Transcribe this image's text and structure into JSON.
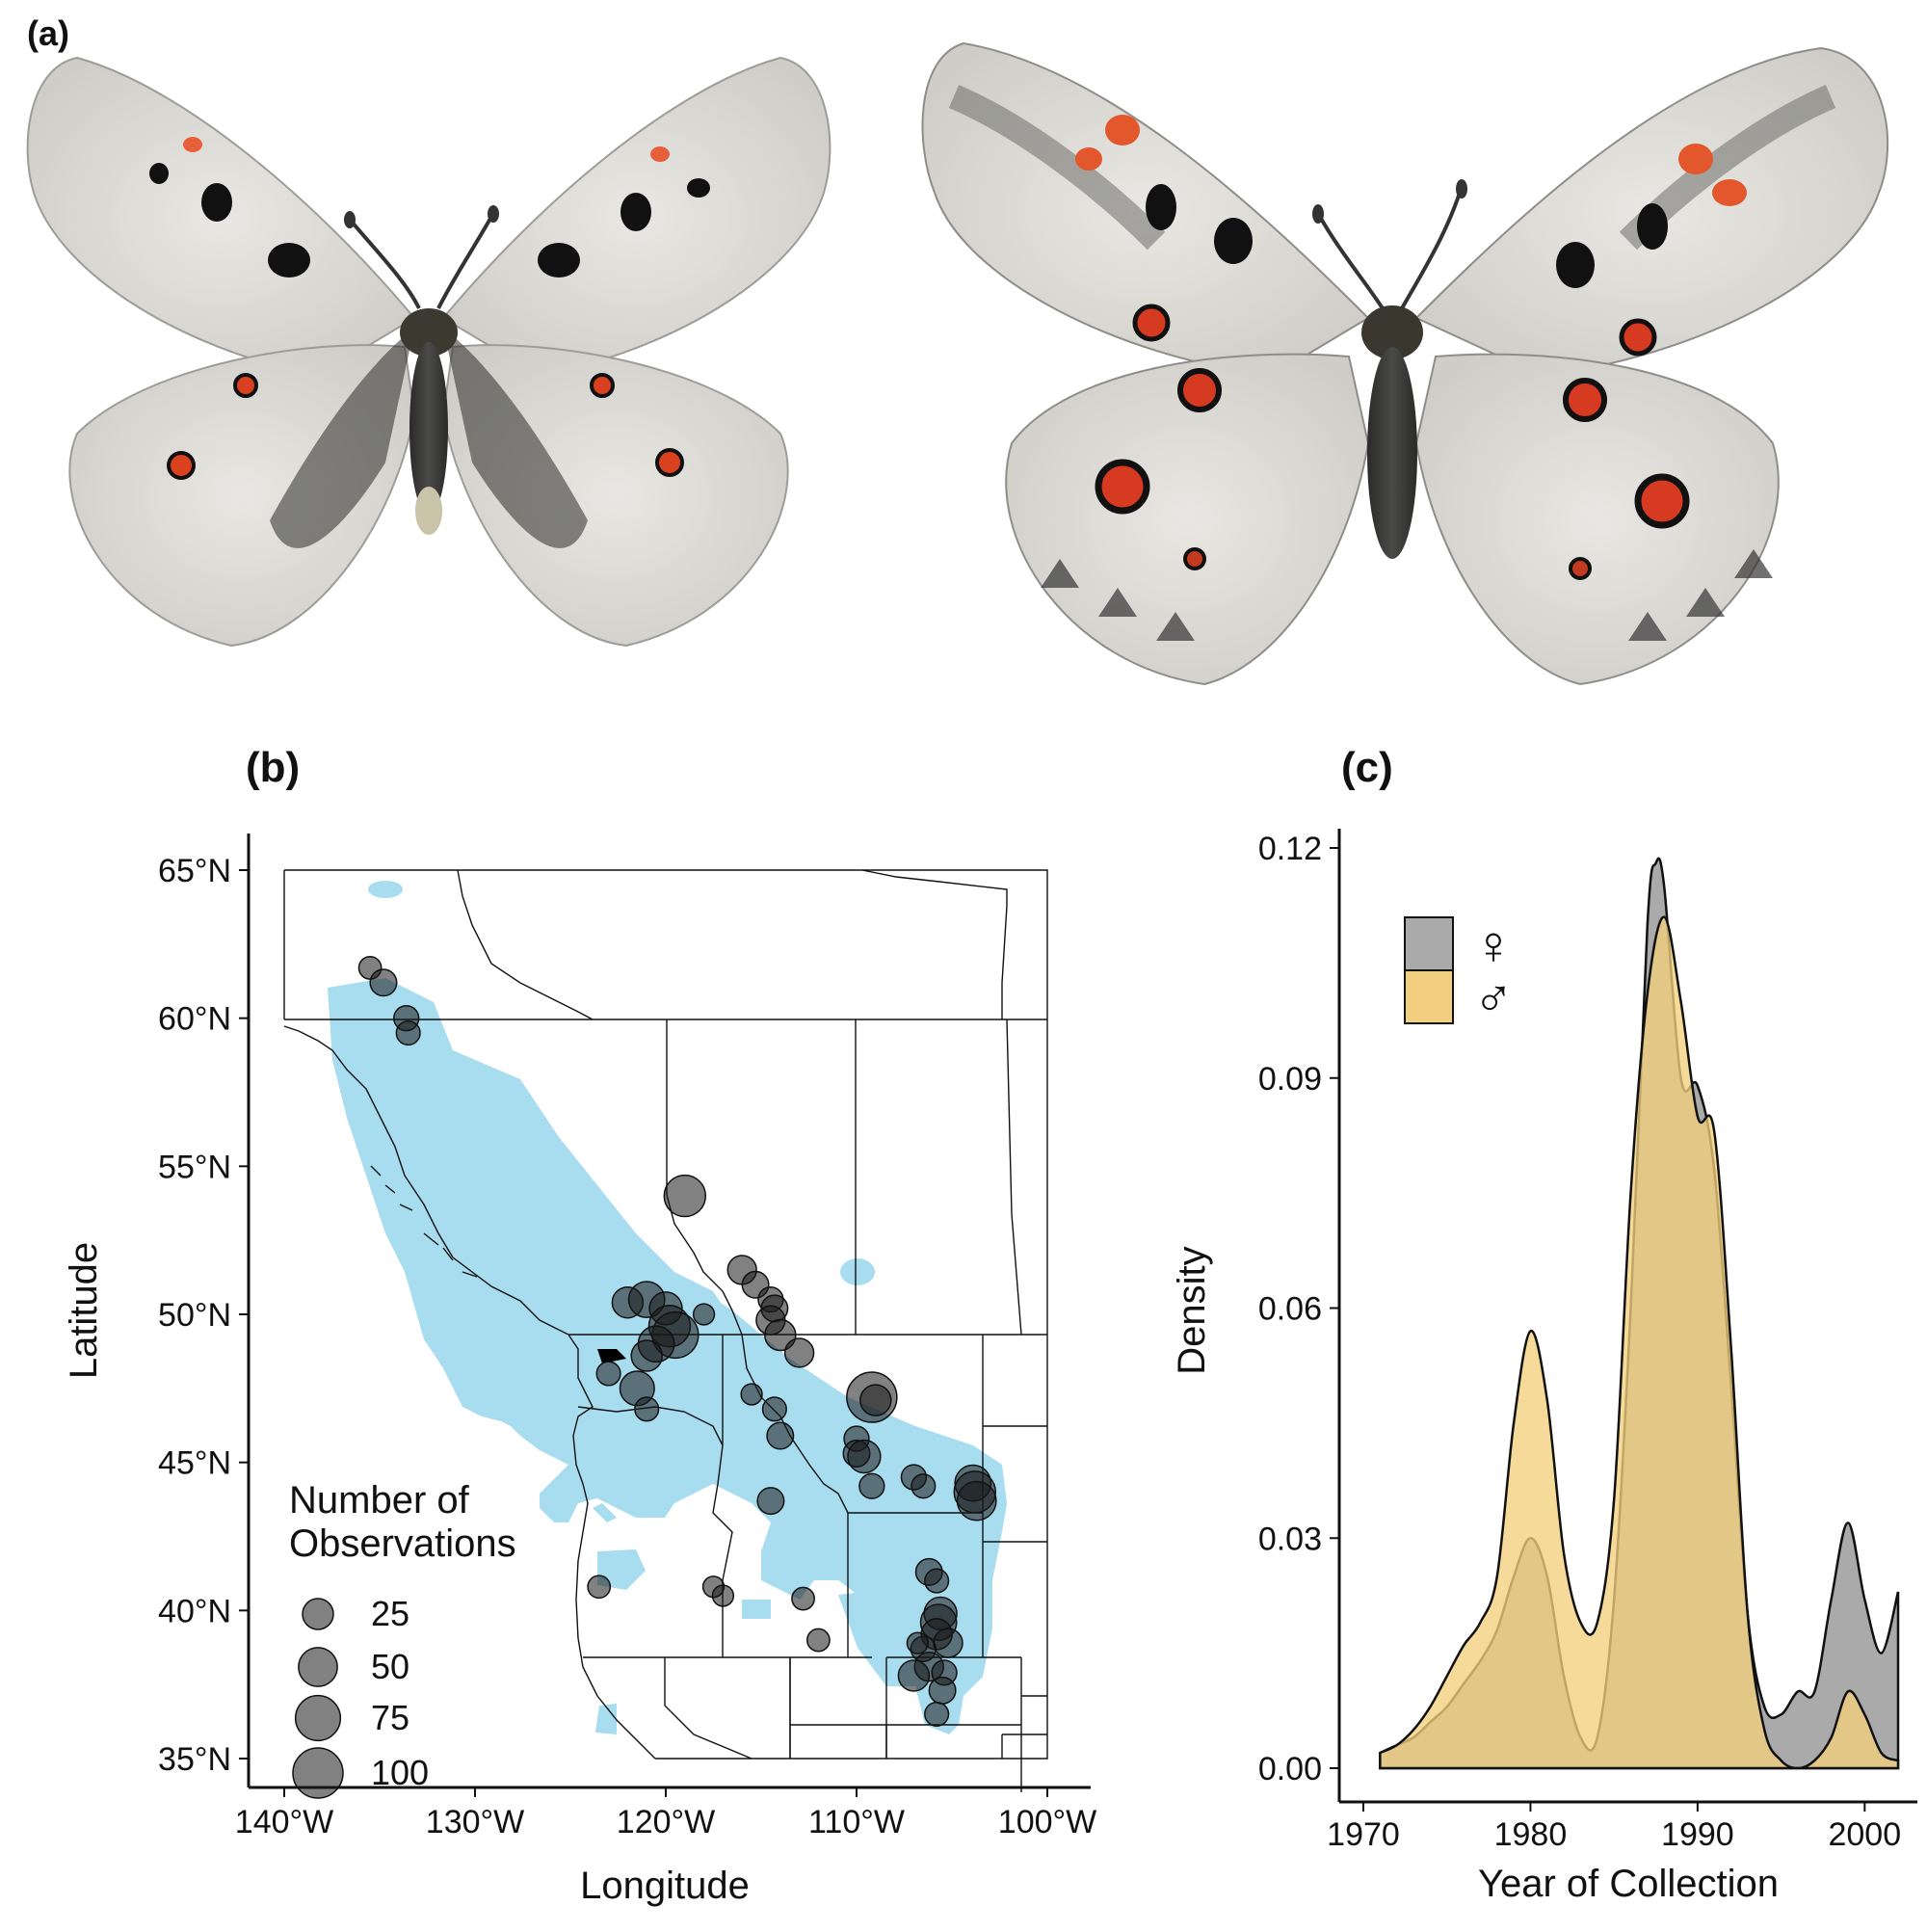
{
  "panel_a": {
    "label": "(a)"
  },
  "panel_b": {
    "label": "(b)",
    "xlabel": "Longitude",
    "ylabel": "Latitude",
    "x_ticks": [
      "140°W",
      "130°W",
      "120°W",
      "110°W",
      "100°W"
    ],
    "y_ticks": [
      "35°N",
      "40°N",
      "45°N",
      "50°N",
      "55°N",
      "60°N",
      "65°N"
    ],
    "legend_title_line1": "Number of",
    "legend_title_line2": "Observations",
    "legend_sizes": [
      "25",
      "50",
      "75",
      "100"
    ],
    "range_color": "#a8dcef",
    "point_color": "#1a1a1a",
    "legend_placement": "bottom-left",
    "observation_points": [
      {
        "lon": -135.5,
        "lat": 61.7,
        "n": 8
      },
      {
        "lon": -134.8,
        "lat": 61.2,
        "n": 15
      },
      {
        "lon": -133.6,
        "lat": 60.0,
        "n": 12
      },
      {
        "lon": -133.5,
        "lat": 59.5,
        "n": 10
      },
      {
        "lon": -119.0,
        "lat": 54.0,
        "n": 60
      },
      {
        "lon": -116.0,
        "lat": 51.5,
        "n": 20
      },
      {
        "lon": -115.3,
        "lat": 51.0,
        "n": 15
      },
      {
        "lon": -114.5,
        "lat": 50.5,
        "n": 12
      },
      {
        "lon": -114.3,
        "lat": 50.2,
        "n": 15
      },
      {
        "lon": -114.5,
        "lat": 49.8,
        "n": 20
      },
      {
        "lon": -114.0,
        "lat": 49.3,
        "n": 25
      },
      {
        "lon": -113.0,
        "lat": 48.7,
        "n": 20
      },
      {
        "lon": -122.0,
        "lat": 50.4,
        "n": 25
      },
      {
        "lon": -121.0,
        "lat": 50.5,
        "n": 40
      },
      {
        "lon": -120.0,
        "lat": 50.2,
        "n": 30
      },
      {
        "lon": -119.8,
        "lat": 49.6,
        "n": 60
      },
      {
        "lon": -119.5,
        "lat": 49.3,
        "n": 80
      },
      {
        "lon": -120.5,
        "lat": 49.0,
        "n": 40
      },
      {
        "lon": -121.0,
        "lat": 48.6,
        "n": 25
      },
      {
        "lon": -121.5,
        "lat": 47.5,
        "n": 35
      },
      {
        "lon": -121.0,
        "lat": 46.8,
        "n": 10
      },
      {
        "lon": -123.0,
        "lat": 48.0,
        "n": 10
      },
      {
        "lon": -118.0,
        "lat": 50.0,
        "n": 6
      },
      {
        "lon": -115.5,
        "lat": 47.3,
        "n": 6
      },
      {
        "lon": -114.3,
        "lat": 46.8,
        "n": 10
      },
      {
        "lon": -114.0,
        "lat": 45.9,
        "n": 15
      },
      {
        "lon": -109.2,
        "lat": 47.2,
        "n": 100
      },
      {
        "lon": -109.0,
        "lat": 47.1,
        "n": 25
      },
      {
        "lon": -110.0,
        "lat": 45.8,
        "n": 12
      },
      {
        "lon": -110.0,
        "lat": 45.3,
        "n": 15
      },
      {
        "lon": -109.6,
        "lat": 45.2,
        "n": 30
      },
      {
        "lon": -109.2,
        "lat": 44.2,
        "n": 12
      },
      {
        "lon": -107.0,
        "lat": 44.5,
        "n": 12
      },
      {
        "lon": -106.5,
        "lat": 44.2,
        "n": 10
      },
      {
        "lon": -103.9,
        "lat": 44.3,
        "n": 40
      },
      {
        "lon": -103.8,
        "lat": 44.0,
        "n": 60
      },
      {
        "lon": -103.7,
        "lat": 43.7,
        "n": 50
      },
      {
        "lon": -114.5,
        "lat": 43.7,
        "n": 15
      },
      {
        "lon": -106.2,
        "lat": 41.3,
        "n": 15
      },
      {
        "lon": -105.8,
        "lat": 41.0,
        "n": 10
      },
      {
        "lon": -105.6,
        "lat": 39.9,
        "n": 30
      },
      {
        "lon": -105.7,
        "lat": 39.6,
        "n": 40
      },
      {
        "lon": -105.8,
        "lat": 39.2,
        "n": 25
      },
      {
        "lon": -105.2,
        "lat": 38.9,
        "n": 20
      },
      {
        "lon": -106.5,
        "lat": 38.7,
        "n": 12
      },
      {
        "lon": -106.2,
        "lat": 38.1,
        "n": 20
      },
      {
        "lon": -107.0,
        "lat": 37.8,
        "n": 25
      },
      {
        "lon": -105.4,
        "lat": 37.9,
        "n": 12
      },
      {
        "lon": -105.5,
        "lat": 37.3,
        "n": 15
      },
      {
        "lon": -105.8,
        "lat": 36.5,
        "n": 10
      },
      {
        "lon": -106.8,
        "lat": 38.9,
        "n": 6
      },
      {
        "lon": -112.8,
        "lat": 40.4,
        "n": 8
      },
      {
        "lon": -112.0,
        "lat": 39.0,
        "n": 8
      },
      {
        "lon": -117.5,
        "lat": 40.8,
        "n": 6
      },
      {
        "lon": -117.0,
        "lat": 40.5,
        "n": 6
      },
      {
        "lon": -123.5,
        "lat": 40.8,
        "n": 8
      }
    ]
  },
  "panel_c": {
    "label": "(c)",
    "chart_data": {
      "type": "area",
      "xlabel": "Year of Collection",
      "ylabel": "Density",
      "xlim": [
        1970,
        2002
      ],
      "ylim": [
        0,
        0.12
      ],
      "x_ticks": [
        "1970",
        "1980",
        "1990",
        "2000"
      ],
      "y_ticks": [
        "0.00",
        "0.03",
        "0.06",
        "0.09",
        "0.12"
      ],
      "legend_placement": "top-left",
      "series": [
        {
          "legend_symbol": "♀",
          "color": "#aaaaaa",
          "x": [
            1971,
            1972,
            1973,
            1974,
            1975,
            1976,
            1977,
            1978,
            1979,
            1980,
            1981,
            1982,
            1983,
            1984,
            1985,
            1986,
            1987,
            1987.5,
            1988,
            1989,
            1990,
            1991,
            1992,
            1993,
            1994,
            1995,
            1996,
            1997,
            1998,
            1999,
            2000,
            2001,
            2002
          ],
          "values": [
            0.002,
            0.003,
            0.004,
            0.006,
            0.008,
            0.011,
            0.014,
            0.018,
            0.025,
            0.03,
            0.025,
            0.012,
            0.004,
            0.004,
            0.022,
            0.06,
            0.11,
            0.118,
            0.115,
            0.09,
            0.089,
            0.078,
            0.05,
            0.02,
            0.008,
            0.007,
            0.01,
            0.01,
            0.022,
            0.032,
            0.022,
            0.015,
            0.023
          ]
        },
        {
          "legend_symbol": "♂",
          "color": "#f2cf7e",
          "x": [
            1971,
            1972,
            1973,
            1974,
            1975,
            1976,
            1977,
            1978,
            1979,
            1980,
            1981,
            1982,
            1983,
            1984,
            1985,
            1986,
            1987,
            1988,
            1989,
            1990,
            1991,
            1992,
            1993,
            1994,
            1995,
            1996,
            1997,
            1998,
            1999,
            2000,
            2001,
            2002
          ],
          "values": [
            0.002,
            0.003,
            0.005,
            0.008,
            0.012,
            0.016,
            0.019,
            0.025,
            0.045,
            0.057,
            0.048,
            0.028,
            0.019,
            0.019,
            0.035,
            0.075,
            0.101,
            0.111,
            0.1,
            0.085,
            0.083,
            0.055,
            0.02,
            0.005,
            0.001,
            0.0,
            0.001,
            0.004,
            0.01,
            0.007,
            0.002,
            0.001
          ]
        }
      ]
    }
  }
}
